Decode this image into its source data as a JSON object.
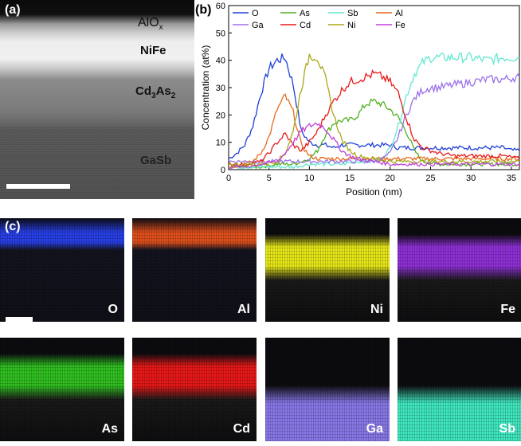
{
  "panel_a": {
    "label": "(a)",
    "layers": [
      {
        "name": "AlO",
        "sub": "x"
      },
      {
        "name": "NiFe",
        "sub": ""
      },
      {
        "name_parts": [
          "Cd",
          "3",
          "As",
          "2"
        ]
      },
      {
        "name": "GaSb",
        "sub": ""
      }
    ]
  },
  "panel_b": {
    "label": "(b)"
  },
  "panel_c": {
    "label": "(c)",
    "maps": [
      {
        "element": "O",
        "color": "#2840e8",
        "band": "top"
      },
      {
        "element": "Al",
        "color": "#e0501c",
        "band": "top"
      },
      {
        "element": "Ni",
        "color": "#e8e818",
        "band": "middle"
      },
      {
        "element": "Fe",
        "color": "#9030d8",
        "band": "middle"
      },
      {
        "element": "As",
        "color": "#30c020",
        "band": "middle"
      },
      {
        "element": "Cd",
        "color": "#e81818",
        "band": "middle"
      },
      {
        "element": "Ga",
        "color": "#8878e8",
        "band": "bottom"
      },
      {
        "element": "Sb",
        "color": "#40e8c0",
        "band": "bottom"
      }
    ]
  },
  "chart_data": {
    "type": "line",
    "xlabel": "Position (nm)",
    "ylabel": "Concentration (at%)",
    "xlim": [
      0,
      36
    ],
    "ylim": [
      0,
      60
    ],
    "xticks": [
      0,
      5,
      10,
      15,
      20,
      25,
      30,
      35
    ],
    "yticks": [
      0,
      10,
      20,
      30,
      40,
      50,
      60
    ],
    "legend_rows": [
      [
        "O",
        "As",
        "Sb",
        "Al"
      ],
      [
        "Ga",
        "Cd",
        "Ni",
        "Fe"
      ]
    ],
    "series": [
      {
        "name": "O",
        "color": "#1f3fd8",
        "x": [
          0,
          1,
          2,
          3,
          4,
          5,
          6,
          7,
          8,
          9,
          10,
          11,
          12,
          13,
          14,
          15,
          16,
          17,
          18,
          19,
          20,
          21,
          22,
          23,
          24,
          25,
          26,
          27,
          28,
          29,
          30,
          31,
          32,
          33,
          34,
          35,
          36
        ],
        "y": [
          4,
          6,
          9,
          16,
          28,
          37,
          40,
          41,
          31,
          14,
          10,
          9,
          9,
          8,
          9,
          9,
          9,
          9,
          9,
          9,
          9,
          8,
          8,
          8,
          8,
          8,
          8,
          8,
          8,
          8,
          8,
          8,
          8,
          8,
          8,
          7,
          7
        ]
      },
      {
        "name": "As",
        "color": "#50b020",
        "x": [
          0,
          2,
          4,
          6,
          8,
          9,
          10,
          11,
          12,
          13,
          14,
          15,
          16,
          17,
          18,
          19,
          20,
          21,
          22,
          23,
          24,
          26,
          28,
          30,
          32,
          34,
          36
        ],
        "y": [
          1,
          1,
          1,
          2,
          2,
          3,
          4,
          7,
          13,
          17,
          18,
          18,
          20,
          24,
          25,
          24,
          22,
          19,
          14,
          7,
          3,
          2,
          2,
          2,
          2,
          2,
          2
        ]
      },
      {
        "name": "Sb",
        "color": "#60e8d0",
        "x": [
          0,
          2,
          4,
          6,
          8,
          10,
          12,
          14,
          16,
          18,
          19,
          20,
          21,
          22,
          23,
          24,
          25,
          26,
          28,
          30,
          32,
          34,
          36
        ],
        "y": [
          1,
          1,
          1,
          1,
          1,
          2,
          2,
          2,
          3,
          3,
          4,
          8,
          16,
          27,
          35,
          39,
          41,
          41,
          41,
          41,
          40,
          41,
          41
        ]
      },
      {
        "name": "Al",
        "color": "#e86a1c",
        "x": [
          0,
          2,
          3,
          4,
          5,
          6,
          7,
          8,
          9,
          10,
          11,
          12,
          14,
          16,
          18,
          20,
          22,
          24,
          26,
          28,
          30,
          32,
          34,
          36
        ],
        "y": [
          1,
          2,
          3,
          6,
          12,
          22,
          27,
          21,
          9,
          5,
          4,
          4,
          4,
          4,
          4,
          4,
          4,
          4,
          4,
          4,
          4,
          4,
          4,
          4
        ]
      },
      {
        "name": "Ga",
        "color": "#9b70e8",
        "x": [
          0,
          2,
          4,
          6,
          8,
          10,
          12,
          14,
          16,
          18,
          19,
          20,
          21,
          22,
          23,
          24,
          25,
          26,
          28,
          30,
          32,
          34,
          36
        ],
        "y": [
          3,
          3,
          3,
          3,
          3,
          3,
          3,
          3,
          3,
          3,
          4,
          6,
          12,
          20,
          26,
          29,
          30,
          30,
          31,
          32,
          33,
          33,
          34
        ]
      },
      {
        "name": "Cd",
        "color": "#e81a1a",
        "x": [
          0,
          2,
          4,
          5,
          6,
          7,
          8,
          9,
          10,
          11,
          12,
          13,
          14,
          15,
          16,
          17,
          18,
          19,
          20,
          21,
          22,
          23,
          24,
          25,
          26,
          28,
          30,
          32,
          34,
          36
        ],
        "y": [
          2,
          2,
          3,
          6,
          10,
          13,
          9,
          7,
          10,
          14,
          20,
          25,
          29,
          32,
          33,
          34,
          35,
          34,
          32,
          28,
          19,
          11,
          8,
          7,
          6,
          5,
          5,
          5,
          5,
          4
        ]
      },
      {
        "name": "Ni",
        "color": "#a8a818",
        "x": [
          0,
          2,
          4,
          6,
          7,
          8,
          9,
          10,
          11,
          12,
          13,
          14,
          15,
          16,
          18,
          20,
          22,
          24,
          26,
          28,
          30,
          32,
          34,
          36
        ],
        "y": [
          2,
          2,
          2,
          3,
          6,
          14,
          30,
          42,
          41,
          33,
          20,
          11,
          7,
          5,
          4,
          3,
          3,
          3,
          3,
          3,
          3,
          3,
          3,
          3
        ]
      },
      {
        "name": "Fe",
        "color": "#c040d8",
        "x": [
          0,
          2,
          4,
          6,
          7,
          8,
          9,
          10,
          11,
          12,
          13,
          14,
          15,
          16,
          18,
          20,
          22,
          24,
          26,
          28,
          30,
          32,
          34,
          36
        ],
        "y": [
          1,
          1,
          2,
          3,
          6,
          10,
          14,
          16,
          17,
          15,
          11,
          7,
          5,
          4,
          3,
          2,
          2,
          2,
          2,
          2,
          2,
          2,
          2,
          2
        ]
      }
    ]
  }
}
